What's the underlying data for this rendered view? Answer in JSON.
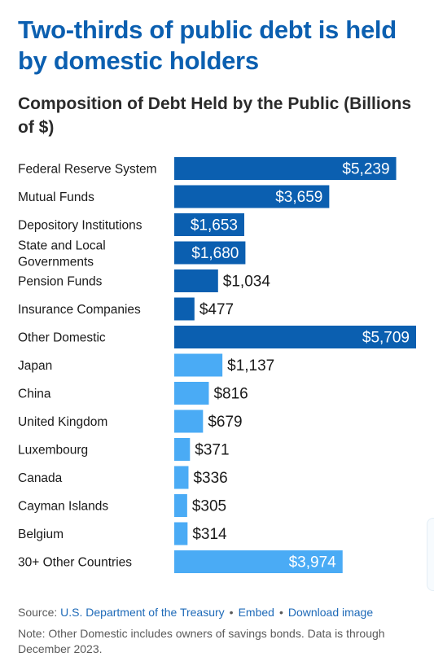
{
  "header": {
    "headline": "Two-thirds of public debt is held by domestic holders",
    "subtitle": "Composition of Debt Held by the Public (Billions of $)"
  },
  "colors": {
    "domestic": "#0b5fb0",
    "foreign": "#4aabf5",
    "headline": "#0b5fb0",
    "link": "#1e6ab8"
  },
  "chart_data": {
    "type": "bar",
    "orientation": "horizontal",
    "title": "Composition of Debt Held by the Public (Billions of $)",
    "categories": [
      "Federal Reserve System",
      "Mutual Funds",
      "Depository Institutions",
      "State and Local Governments",
      "Pension Funds",
      "Insurance Companies",
      "Other Domestic",
      "Japan",
      "China",
      "United Kingdom",
      "Luxembourg",
      "Canada",
      "Cayman Islands",
      "Belgium",
      "30+ Other Countries"
    ],
    "values": [
      5239,
      3659,
      1653,
      1680,
      1034,
      477,
      5709,
      1137,
      816,
      679,
      371,
      336,
      305,
      314,
      3974
    ],
    "value_labels": [
      "$5,239",
      "$3,659",
      "$1,653",
      "$1,680",
      "$1,034",
      "$477",
      "$5,709",
      "$1,137",
      "$816",
      "$679",
      "$371",
      "$336",
      "$305",
      "$314",
      "$3,974"
    ],
    "groups": [
      "domestic",
      "domestic",
      "domestic",
      "domestic",
      "domestic",
      "domestic",
      "domestic",
      "foreign",
      "foreign",
      "foreign",
      "foreign",
      "foreign",
      "foreign",
      "foreign",
      "foreign"
    ],
    "xlim": [
      0,
      5709
    ],
    "grid": false,
    "legend": "none"
  },
  "footer": {
    "source_prefix": "Source:",
    "source_link": "U.S. Department of the Treasury",
    "embed_label": "Embed",
    "download_label": "Download image",
    "separator": "•",
    "note": "Note: Other Domestic includes owners of savings bonds. Data is through December 2023."
  }
}
